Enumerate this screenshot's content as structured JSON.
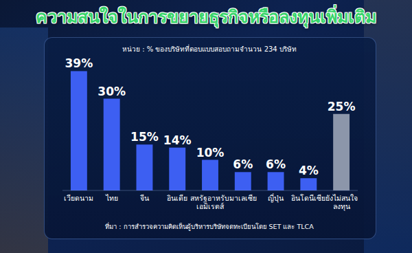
{
  "chart_data": {
    "type": "bar",
    "title": "ความสนใจในการขยายธุรกิจหรือลงทุนเพิ่มเติม",
    "subtitle": "หน่วย : % ของบริษัทที่ตอบแบบสอบถามจำนวน 234 บริษัท",
    "source": "ที่มา : การสำรวจความคิดเห็นผู้บริหารบริษัทจดทะเบียนโดย SET และ TLCA",
    "categories": [
      "เวียดนาม",
      "ไทย",
      "จีน",
      "อินเดีย",
      "สหรัฐอาหรับเอมิเรตส์",
      "มาเลเซีย",
      "ญี่ปุ่น",
      "อินโดนีเซีย",
      "ยังไม่สนใจลงทุน"
    ],
    "values": [
      39,
      30,
      15,
      14,
      10,
      6,
      6,
      4,
      25
    ],
    "value_labels": [
      "39%",
      "30%",
      "15%",
      "14%",
      "10%",
      "6%",
      "6%",
      "4%",
      "25%"
    ],
    "colors": [
      "#3d5ff2",
      "#3d5ff2",
      "#3d5ff2",
      "#3d5ff2",
      "#3d5ff2",
      "#3d5ff2",
      "#3d5ff2",
      "#3d5ff2",
      "#8c96aa"
    ],
    "ylim": [
      0,
      40
    ],
    "data_labels": true,
    "tick_labels": "x",
    "grid": false
  }
}
